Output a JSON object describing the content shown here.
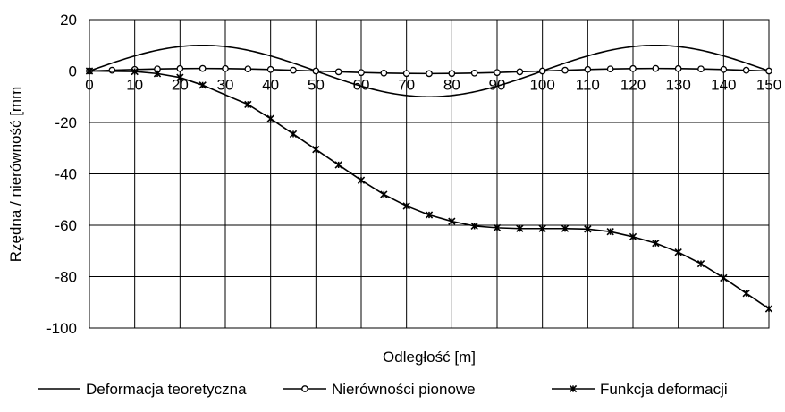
{
  "chart_data": {
    "type": "line",
    "xlabel": "Odległość [m]",
    "ylabel": "Rzędna / nierówność [mm",
    "xlim": [
      0,
      150
    ],
    "ylim": [
      -100,
      20
    ],
    "x_ticks": [
      "0",
      "10",
      "20",
      "30",
      "40",
      "50",
      "60",
      "70",
      "80",
      "90",
      "100",
      "110",
      "120",
      "130",
      "140",
      "150"
    ],
    "y_ticks": [
      "20",
      "0",
      "-20",
      "-40",
      "-60",
      "-80",
      "-100"
    ],
    "grid": true,
    "legend_position": "bottom",
    "series": [
      {
        "name": "Deformacja teoretyczna",
        "marker": "none",
        "x": [
          0,
          5,
          10,
          15,
          20,
          25,
          30,
          35,
          40,
          45,
          50,
          55,
          60,
          65,
          70,
          75,
          80,
          85,
          90,
          95,
          100,
          105,
          110,
          115,
          120,
          125,
          130,
          135,
          140,
          145,
          150
        ],
        "y": [
          0,
          3.1,
          5.9,
          8.1,
          9.5,
          10,
          9.5,
          8.1,
          5.9,
          3.1,
          0,
          -3.1,
          -5.9,
          -8.1,
          -9.5,
          -10,
          -9.5,
          -8.1,
          -5.9,
          -3.1,
          0,
          3.1,
          5.9,
          8.1,
          9.5,
          10,
          9.5,
          8.1,
          5.9,
          3.1,
          0
        ]
      },
      {
        "name": "Nierówności pionowe",
        "marker": "circle",
        "x": [
          0,
          5,
          10,
          15,
          20,
          25,
          30,
          35,
          40,
          45,
          50,
          55,
          60,
          65,
          70,
          75,
          80,
          85,
          90,
          95,
          100,
          105,
          110,
          115,
          120,
          125,
          130,
          135,
          140,
          145,
          150
        ],
        "y": [
          0,
          0.3,
          0.6,
          0.8,
          0.95,
          1,
          0.95,
          0.8,
          0.6,
          0.3,
          0,
          -0.3,
          -0.6,
          -0.8,
          -0.95,
          -1,
          -0.95,
          -0.8,
          -0.6,
          -0.3,
          0,
          0.3,
          0.6,
          0.8,
          0.95,
          1,
          0.95,
          0.8,
          0.6,
          0.3,
          0
        ]
      },
      {
        "name": "Funkcja deformacji",
        "marker": "x",
        "x": [
          0,
          10,
          15,
          20,
          25,
          35,
          40,
          45,
          50,
          55,
          60,
          65,
          70,
          75,
          80,
          85,
          90,
          95,
          100,
          105,
          110,
          115,
          120,
          125,
          130,
          135,
          140,
          145,
          150
        ],
        "y": [
          0,
          -0.2,
          -1,
          -2.5,
          -5.5,
          -13,
          -18.5,
          -24.5,
          -30.5,
          -36.5,
          -42.5,
          -48,
          -52.5,
          -56,
          -58.5,
          -60.3,
          -61,
          -61.3,
          -61.3,
          -61.3,
          -61.5,
          -62.5,
          -64.5,
          -67,
          -70.5,
          -75,
          -80.5,
          -86.5,
          -92.5
        ]
      }
    ]
  }
}
